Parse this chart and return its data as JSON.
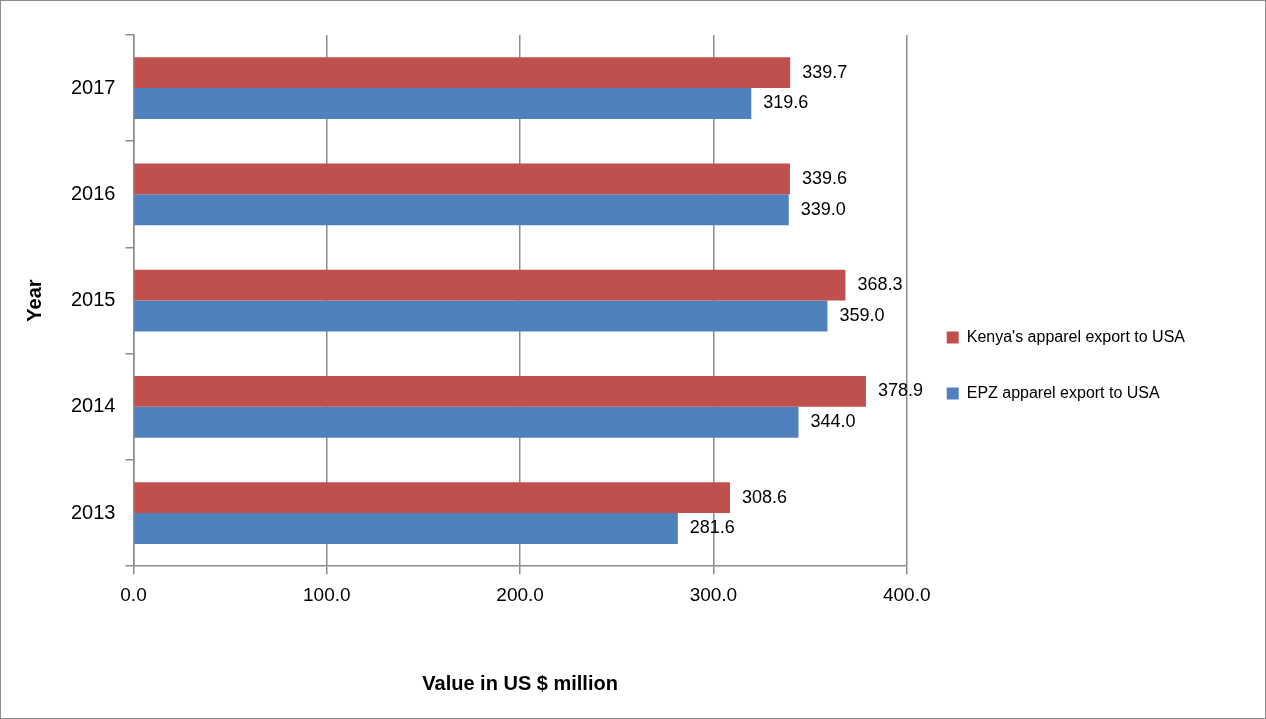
{
  "chart_data": {
    "type": "bar",
    "orientation": "horizontal",
    "categories": [
      "2017",
      "2016",
      "2015",
      "2014",
      "2013"
    ],
    "series": [
      {
        "name": "Kenya's apparel export to USA",
        "color": "#c0504d",
        "values": [
          339.7,
          339.6,
          368.3,
          378.9,
          308.6
        ],
        "value_labels": [
          "339.7",
          "339.6",
          "368.3",
          "378.9",
          "308.6"
        ]
      },
      {
        "name": "EPZ apparel export to USA",
        "color": "#4f81bd",
        "values": [
          319.6,
          339.0,
          359.0,
          344.0,
          281.6
        ],
        "value_labels": [
          "319.6",
          "339.0",
          "359.0",
          "344.0",
          "281.6"
        ]
      }
    ],
    "xlim": [
      0,
      400
    ],
    "xticks": [
      {
        "value": 0,
        "label": "0.0"
      },
      {
        "value": 100,
        "label": "100.0"
      },
      {
        "value": 200,
        "label": "200.0"
      },
      {
        "value": 300,
        "label": "300.0"
      },
      {
        "value": 400,
        "label": "400.0"
      }
    ],
    "xlabel": "Value in US $ million",
    "ylabel": "Year",
    "grid": "x",
    "legend": "right"
  }
}
